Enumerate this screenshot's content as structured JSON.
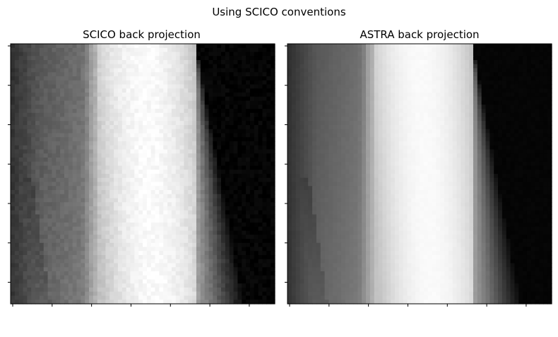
{
  "figure": {
    "suptitle": "Using SCICO conventions"
  },
  "chart_data": [
    {
      "type": "heatmap",
      "title": "SCICO back projection",
      "colormap": "gray",
      "ticks_labeled": false,
      "grid": false
    },
    {
      "type": "heatmap",
      "title": "ASTRA back projection",
      "colormap": "gray",
      "ticks_labeled": false,
      "grid": false
    }
  ]
}
